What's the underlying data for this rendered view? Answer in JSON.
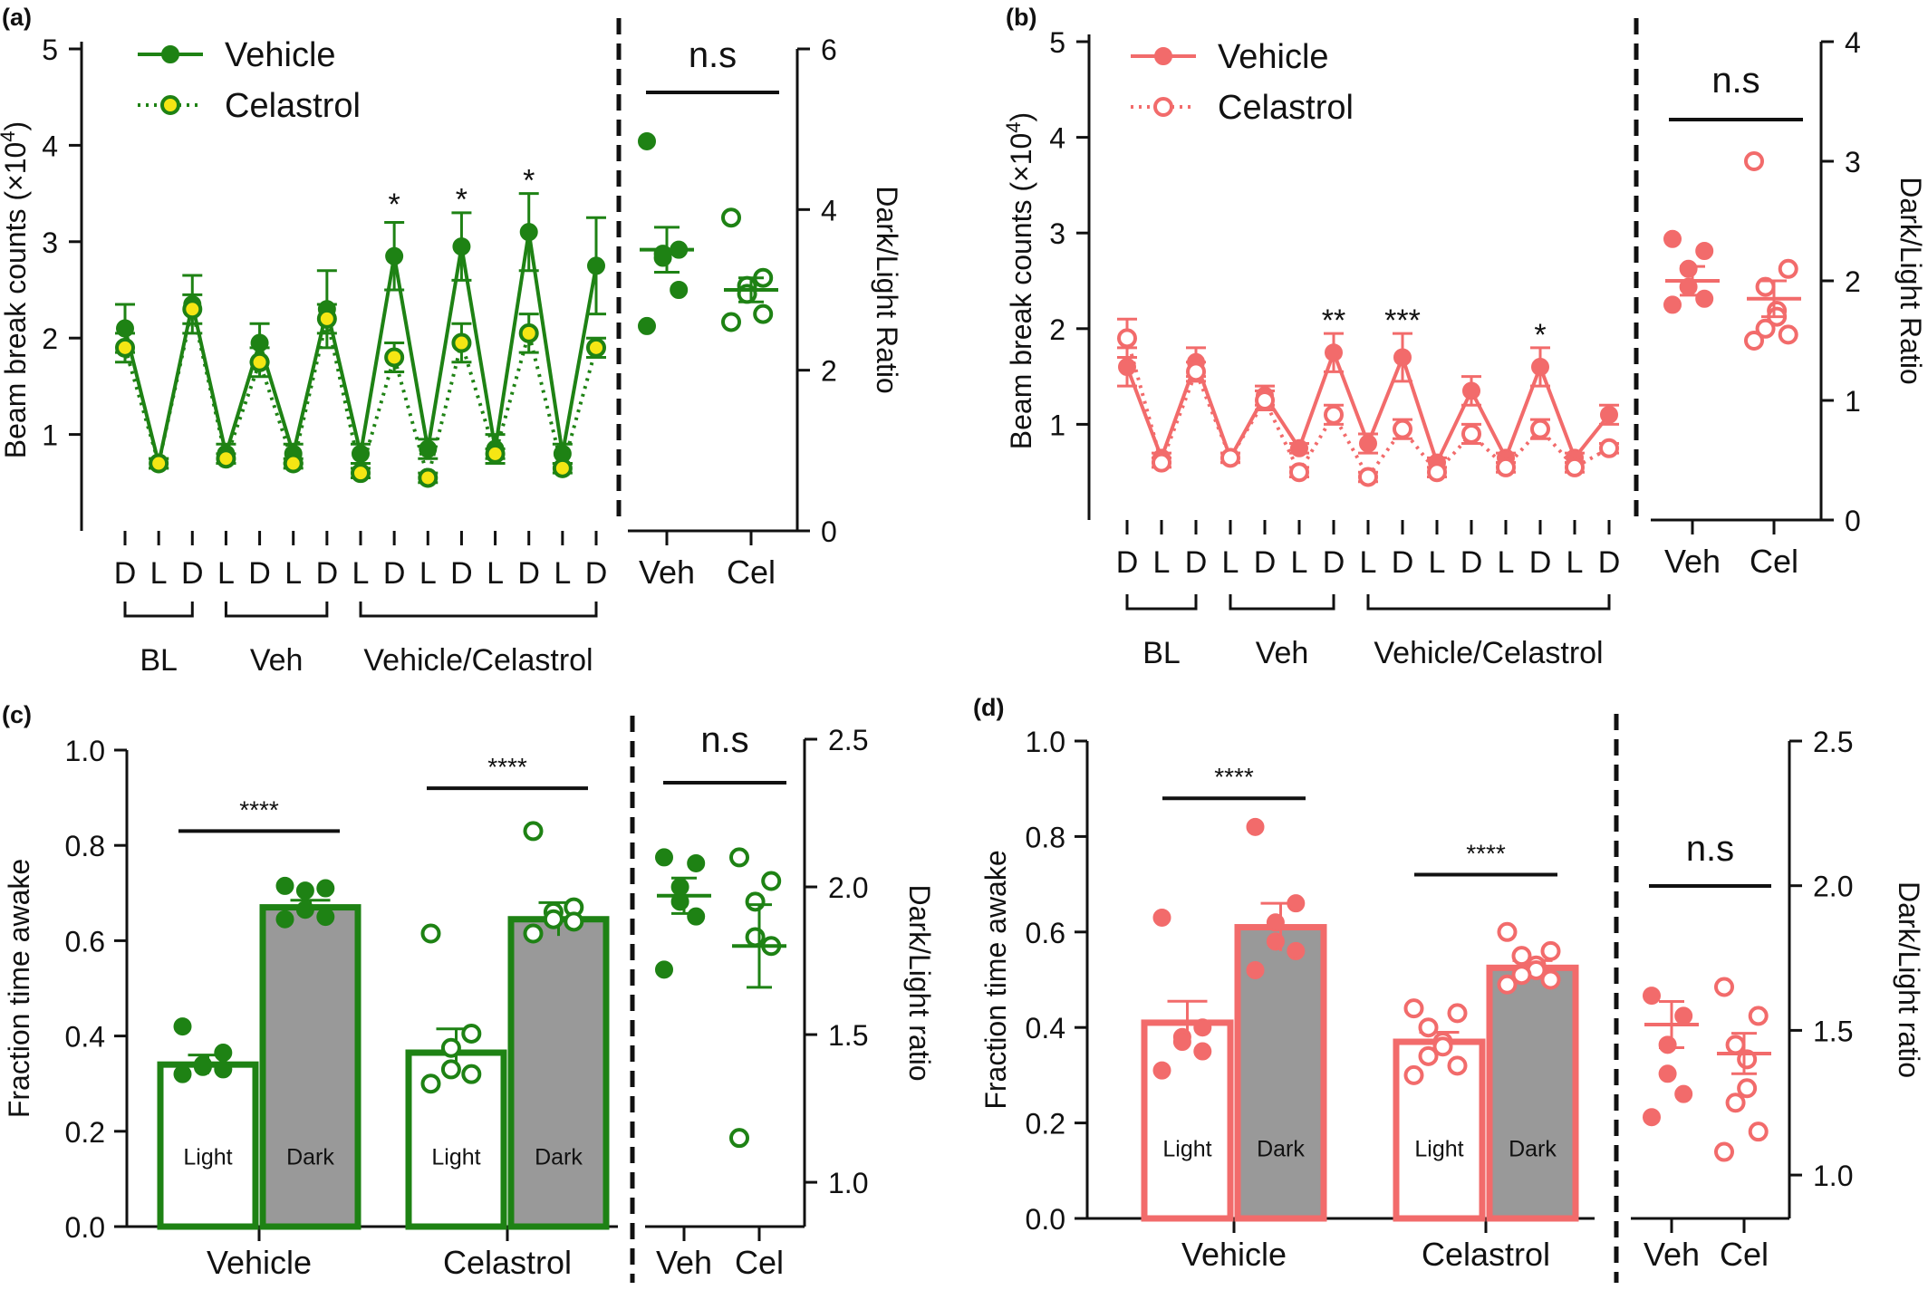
{
  "chart_data": [
    {
      "panel": "(a)",
      "type": "line",
      "ylabel": "Beam break counts (×10",
      "ylabel_exp": "4",
      "ylabel_close": ")",
      "ylim": [
        0,
        5
      ],
      "yticks": [
        "1",
        "2",
        "3",
        "4",
        "5"
      ],
      "categories": [
        "D",
        "L",
        "D",
        "L",
        "D",
        "L",
        "D",
        "L",
        "D",
        "L",
        "D",
        "L",
        "D",
        "L",
        "D"
      ],
      "groups": [
        {
          "label": "BL",
          "from": 0,
          "to": 2
        },
        {
          "label": "Veh",
          "from": 3,
          "to": 6
        },
        {
          "label": "Vehicle/Celastrol",
          "from": 7,
          "to": 14
        }
      ],
      "series": [
        {
          "name": "Vehicle",
          "values": [
            2.1,
            0.7,
            2.35,
            0.8,
            1.95,
            0.8,
            2.3,
            0.8,
            2.85,
            0.85,
            2.95,
            0.85,
            3.1,
            0.8,
            2.75
          ],
          "errors": [
            0.25,
            0.05,
            0.3,
            0.1,
            0.2,
            0.1,
            0.4,
            0.1,
            0.35,
            0.1,
            0.35,
            0.15,
            0.4,
            0.1,
            0.5
          ]
        },
        {
          "name": "Celastrol",
          "values": [
            1.9,
            0.7,
            2.3,
            0.75,
            1.75,
            0.7,
            2.2,
            0.6,
            1.8,
            0.55,
            1.95,
            0.8,
            2.05,
            0.65,
            1.9
          ],
          "errors": [
            0.15,
            0.05,
            0.15,
            0.05,
            0.15,
            0.05,
            0.15,
            0.05,
            0.15,
            0.05,
            0.2,
            0.05,
            0.2,
            0.05,
            0.1
          ]
        }
      ],
      "annotations": [
        {
          "text": "*",
          "index": 8,
          "y": 3.45
        },
        {
          "text": "*",
          "index": 10,
          "y": 3.5
        },
        {
          "text": "*",
          "index": 12,
          "y": 3.7
        }
      ],
      "ratio": {
        "ylabel": "Dark/Light Ratio",
        "ylim": [
          0,
          6
        ],
        "yticks": [
          "0",
          "2",
          "4",
          "6"
        ],
        "categories": [
          "Veh",
          "Cel"
        ],
        "sig": "n.s",
        "points": [
          [
            4.85,
            3.5,
            3.4,
            3.45,
            3.0,
            2.55
          ],
          [
            3.9,
            3.15,
            3.05,
            2.95,
            2.7,
            2.6
          ]
        ],
        "mean": [
          3.5,
          3.0
        ],
        "sem": [
          0.28,
          0.15
        ]
      }
    },
    {
      "panel": "(b)",
      "type": "line",
      "ylabel": "Beam break counts (×10",
      "ylabel_exp": "4",
      "ylabel_close": ")",
      "ylim": [
        0,
        5
      ],
      "yticks": [
        "1",
        "2",
        "3",
        "4",
        "5"
      ],
      "categories": [
        "D",
        "L",
        "D",
        "L",
        "D",
        "L",
        "D",
        "L",
        "D",
        "L",
        "D",
        "L",
        "D",
        "L",
        "D"
      ],
      "groups": [
        {
          "label": "BL",
          "from": 0,
          "to": 2
        },
        {
          "label": "Veh",
          "from": 3,
          "to": 6
        },
        {
          "label": "Vehicle/Celastrol",
          "from": 7,
          "to": 14
        }
      ],
      "series": [
        {
          "name": "Vehicle",
          "values": [
            1.6,
            0.65,
            1.65,
            0.65,
            1.3,
            0.75,
            1.75,
            0.8,
            1.7,
            0.6,
            1.35,
            0.65,
            1.6,
            0.65,
            1.1
          ],
          "errors": [
            0.2,
            0.05,
            0.15,
            0.05,
            0.1,
            0.05,
            0.2,
            0.1,
            0.25,
            0.05,
            0.15,
            0.05,
            0.2,
            0.05,
            0.1
          ]
        },
        {
          "name": "Celastrol",
          "values": [
            1.9,
            0.6,
            1.55,
            0.65,
            1.25,
            0.5,
            1.1,
            0.45,
            0.95,
            0.5,
            0.9,
            0.55,
            0.95,
            0.55,
            0.75
          ],
          "errors": [
            0.2,
            0.05,
            0.1,
            0.05,
            0.1,
            0.05,
            0.1,
            0.05,
            0.1,
            0.05,
            0.1,
            0.05,
            0.1,
            0.05,
            0.05
          ]
        }
      ],
      "annotations": [
        {
          "text": "**",
          "index": 6,
          "y": 2.15
        },
        {
          "text": "***",
          "index": 8,
          "y": 2.15
        },
        {
          "text": "*",
          "index": 12,
          "y": 2.0
        }
      ],
      "ratio": {
        "ylabel": "Dark/Light Ratio",
        "ylim": [
          0,
          4
        ],
        "yticks": [
          "0",
          "1",
          "2",
          "3",
          "4"
        ],
        "categories": [
          "Veh",
          "Cel"
        ],
        "sig": "n.s",
        "points": [
          [
            2.35,
            2.25,
            2.1,
            1.95,
            1.85,
            1.8
          ],
          [
            3.0,
            2.1,
            1.95,
            1.75,
            1.7,
            1.6,
            1.55,
            1.5
          ]
        ],
        "mean": [
          2.0,
          1.85
        ],
        "sem": [
          0.12,
          0.15
        ]
      }
    },
    {
      "panel": "(c)",
      "type": "bar",
      "ylabel": "Fraction time awake",
      "ylim": [
        0,
        1.0
      ],
      "yticks": [
        "0.0",
        "0.2",
        "0.4",
        "0.6",
        "0.8",
        "1.0"
      ],
      "categories": [
        "Vehicle",
        "Celastrol"
      ],
      "bar_labels": [
        "Light",
        "Dark"
      ],
      "series": [
        {
          "name": "Light",
          "values": [
            0.34,
            0.365
          ],
          "errors": [
            0.02,
            0.05
          ]
        },
        {
          "name": "Dark",
          "values": [
            0.67,
            0.645
          ],
          "errors": [
            0.015,
            0.035
          ]
        }
      ],
      "points": {
        "light": [
          [
            0.42,
            0.365,
            0.34,
            0.335,
            0.33,
            0.32
          ],
          [
            0.615,
            0.405,
            0.375,
            0.33,
            0.32,
            0.3
          ]
        ],
        "dark": [
          [
            0.715,
            0.71,
            0.705,
            0.665,
            0.65,
            0.645
          ],
          [
            0.83,
            0.67,
            0.66,
            0.645,
            0.64,
            0.615
          ]
        ]
      },
      "sig": [
        "****",
        "****"
      ],
      "ratio": {
        "ylabel": "Dark/Light ratio",
        "ylim": [
          0.85,
          2.5
        ],
        "yticks": [
          "1.0",
          "1.5",
          "2.0",
          "2.5"
        ],
        "categories": [
          "Veh",
          "Cel"
        ],
        "sig": "n.s",
        "points": [
          [
            2.1,
            2.08,
            2.0,
            1.95,
            1.9,
            1.72
          ],
          [
            2.1,
            2.02,
            1.95,
            1.83,
            1.8,
            1.15
          ]
        ],
        "mean": [
          1.97,
          1.8
        ],
        "sem": [
          0.06,
          0.14
        ]
      }
    },
    {
      "panel": "(d)",
      "type": "bar",
      "ylabel": "Fraction time awake",
      "ylim": [
        0,
        1.0
      ],
      "yticks": [
        "0.0",
        "0.2",
        "0.4",
        "0.6",
        "0.8",
        "1.0"
      ],
      "categories": [
        "Vehicle",
        "Celastrol"
      ],
      "bar_labels": [
        "Light",
        "Dark"
      ],
      "series": [
        {
          "name": "Light",
          "values": [
            0.41,
            0.37
          ],
          "errors": [
            0.045,
            0.02
          ]
        },
        {
          "name": "Dark",
          "values": [
            0.61,
            0.525
          ],
          "errors": [
            0.05,
            0.015
          ]
        }
      ],
      "points": {
        "light": [
          [
            0.63,
            0.4,
            0.38,
            0.37,
            0.35,
            0.31
          ],
          [
            0.44,
            0.43,
            0.4,
            0.37,
            0.36,
            0.34,
            0.32,
            0.3
          ]
        ],
        "dark": [
          [
            0.82,
            0.66,
            0.62,
            0.58,
            0.56,
            0.52
          ],
          [
            0.6,
            0.56,
            0.55,
            0.53,
            0.52,
            0.51,
            0.5,
            0.49
          ]
        ]
      },
      "sig": [
        "****",
        "****"
      ],
      "ratio": {
        "ylabel": "Dark/Light ratio",
        "ylim": [
          0.85,
          2.5
        ],
        "yticks": [
          "1.0",
          "1.5",
          "2.0",
          "2.5"
        ],
        "categories": [
          "Veh",
          "Cel"
        ],
        "sig": "n.s",
        "points": [
          [
            1.62,
            1.55,
            1.45,
            1.35,
            1.28,
            1.2
          ],
          [
            1.65,
            1.55,
            1.45,
            1.4,
            1.3,
            1.25,
            1.15,
            1.08
          ]
        ],
        "mean": [
          1.52,
          1.42
        ],
        "sem": [
          0.08,
          0.07
        ]
      }
    }
  ],
  "colors": {
    "green": "#1e8214",
    "green_fill_cel": "#f5e614",
    "salmon": "#f26b6b",
    "bar_gray": "#999999",
    "ink": "#111111"
  }
}
